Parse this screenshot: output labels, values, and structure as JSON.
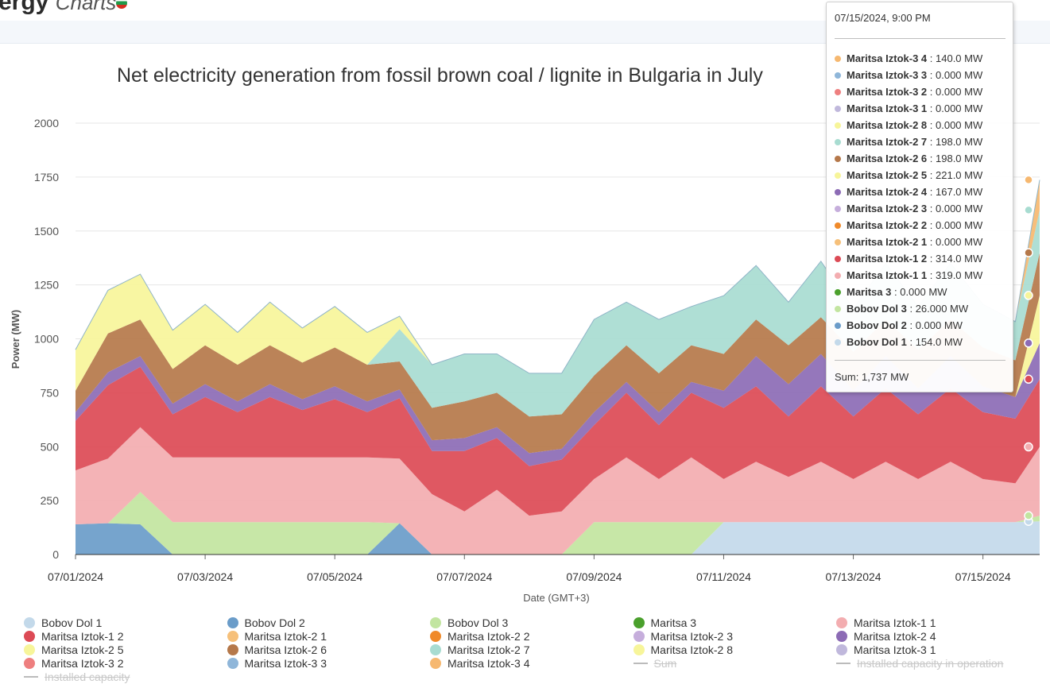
{
  "header": {
    "logo_text": "ergy",
    "logo_sub": "Charts"
  },
  "colors": {
    "Bobov Dol 1": "#c3d9ea",
    "Bobov Dol 2": "#6a9cc9",
    "Bobov Dol 3": "#c2e5a0",
    "Maritsa 3": "#4aa02c",
    "Maritsa Iztok-1 1": "#f3adb0",
    "Maritsa Iztok-1 2": "#dc4a55",
    "Maritsa Iztok-2 1": "#f6c07a",
    "Maritsa Iztok-2 2": "#f08a2a",
    "Maritsa Iztok-2 3": "#c6aedc",
    "Maritsa Iztok-2 4": "#8c6bb5",
    "Maritsa Iztok-2 5": "#f7f59a",
    "Maritsa Iztok-2 6": "#b5784a",
    "Maritsa Iztok-2 7": "#a8dcd1",
    "Maritsa Iztok-2 8": "#f7f59a",
    "Maritsa Iztok-3 1": "#c0b8dc",
    "Maritsa Iztok-3 2": "#ee7f7f",
    "Maritsa Iztok-3 3": "#8fb6d9",
    "Maritsa Iztok-3 4": "#f6b870",
    "Sum": "#bbbbbb",
    "Installed capacity in operation": "#bbbbbb",
    "Installed capacity": "#bbbbbb"
  },
  "chart_data": {
    "type": "area",
    "stacked": true,
    "title": "Net electricity generation from fossil brown coal / lignite in Bulgaria in July",
    "xlabel": "Date (GMT+3)",
    "ylabel": "Power (MW)",
    "ylim": [
      0,
      2000
    ],
    "yticks": [
      0,
      250,
      500,
      750,
      1000,
      1250,
      1500,
      1750,
      2000
    ],
    "xlim": [
      "07/01/2024",
      "07/15/2024 21:00"
    ],
    "xticks": [
      "07/01/2024",
      "07/03/2024",
      "07/05/2024",
      "07/07/2024",
      "07/09/2024",
      "07/11/2024",
      "07/13/2024",
      "07/15/2024"
    ],
    "grid": "horizontal",
    "legend_position": "bottom",
    "x_day": [
      0,
      0.5,
      1,
      1.5,
      2,
      2.5,
      3,
      3.5,
      4,
      4.5,
      5,
      5.5,
      6,
      6.5,
      7,
      7.5,
      8,
      8.5,
      9,
      9.5,
      10,
      10.5,
      11,
      11.5,
      12,
      12.5,
      13,
      13.5,
      14,
      14.5,
      14.875
    ],
    "series": [
      {
        "name": "Bobov Dol 1",
        "values": [
          0,
          0,
          0,
          0,
          0,
          0,
          0,
          0,
          0,
          0,
          0,
          0,
          0,
          0,
          0,
          0,
          0,
          0,
          0,
          0,
          150,
          150,
          150,
          150,
          150,
          150,
          150,
          150,
          150,
          150,
          154
        ]
      },
      {
        "name": "Bobov Dol 2",
        "values": [
          140,
          145,
          140,
          0,
          0,
          0,
          0,
          0,
          0,
          0,
          145,
          0,
          0,
          0,
          0,
          0,
          0,
          0,
          0,
          0,
          0,
          0,
          0,
          0,
          0,
          0,
          0,
          0,
          0,
          0,
          0
        ]
      },
      {
        "name": "Bobov Dol 3",
        "values": [
          0,
          0,
          150,
          150,
          150,
          150,
          150,
          150,
          150,
          150,
          0,
          0,
          0,
          0,
          0,
          0,
          150,
          150,
          150,
          150,
          0,
          0,
          0,
          0,
          0,
          0,
          0,
          0,
          0,
          0,
          26
        ]
      },
      {
        "name": "Maritsa 3",
        "values": [
          0,
          0,
          0,
          0,
          0,
          0,
          0,
          0,
          0,
          0,
          0,
          0,
          0,
          0,
          0,
          0,
          0,
          0,
          0,
          0,
          0,
          0,
          0,
          0,
          0,
          0,
          0,
          0,
          0,
          0,
          0
        ]
      },
      {
        "name": "Maritsa Iztok-1 1",
        "values": [
          250,
          300,
          300,
          300,
          300,
          300,
          300,
          300,
          300,
          300,
          300,
          280,
          200,
          300,
          180,
          200,
          200,
          300,
          200,
          300,
          200,
          280,
          210,
          280,
          200,
          280,
          200,
          280,
          200,
          180,
          319
        ]
      },
      {
        "name": "Maritsa Iztok-1 2",
        "values": [
          230,
          340,
          280,
          200,
          280,
          210,
          280,
          220,
          270,
          210,
          280,
          200,
          280,
          240,
          230,
          240,
          250,
          300,
          250,
          300,
          330,
          350,
          280,
          350,
          290,
          340,
          300,
          340,
          310,
          300,
          314
        ]
      },
      {
        "name": "Maritsa Iztok-2 1",
        "values": [
          0,
          0,
          0,
          0,
          0,
          0,
          0,
          0,
          0,
          0,
          0,
          0,
          0,
          0,
          0,
          0,
          0,
          0,
          0,
          0,
          0,
          0,
          0,
          0,
          0,
          0,
          0,
          0,
          0,
          0,
          0
        ]
      },
      {
        "name": "Maritsa Iztok-2 2",
        "values": [
          0,
          0,
          0,
          0,
          0,
          0,
          0,
          0,
          0,
          0,
          0,
          0,
          0,
          0,
          0,
          0,
          0,
          0,
          0,
          0,
          0,
          0,
          0,
          0,
          0,
          0,
          0,
          0,
          0,
          0,
          0
        ]
      },
      {
        "name": "Maritsa Iztok-2 3",
        "values": [
          0,
          0,
          0,
          0,
          0,
          0,
          0,
          0,
          0,
          0,
          0,
          0,
          0,
          0,
          0,
          0,
          0,
          0,
          0,
          0,
          0,
          0,
          0,
          0,
          0,
          0,
          0,
          0,
          0,
          0,
          0
        ]
      },
      {
        "name": "Maritsa Iztok-2 4",
        "values": [
          40,
          60,
          50,
          50,
          60,
          50,
          60,
          50,
          60,
          50,
          40,
          50,
          60,
          50,
          60,
          50,
          60,
          50,
          60,
          50,
          80,
          140,
          150,
          150,
          120,
          150,
          120,
          150,
          120,
          100,
          167
        ]
      },
      {
        "name": "Maritsa Iztok-2 5",
        "values": [
          0,
          0,
          0,
          0,
          0,
          0,
          0,
          0,
          0,
          0,
          0,
          0,
          0,
          0,
          0,
          0,
          0,
          0,
          0,
          0,
          0,
          0,
          0,
          0,
          0,
          0,
          0,
          0,
          0,
          0,
          221
        ]
      },
      {
        "name": "Maritsa Iztok-2 6",
        "values": [
          100,
          180,
          170,
          160,
          180,
          170,
          180,
          170,
          180,
          170,
          130,
          150,
          170,
          160,
          170,
          160,
          170,
          170,
          180,
          170,
          170,
          170,
          180,
          170,
          180,
          170,
          180,
          170,
          180,
          170,
          198
        ]
      },
      {
        "name": "Maritsa Iztok-2 7",
        "values": [
          0,
          0,
          0,
          0,
          0,
          0,
          0,
          0,
          0,
          0,
          150,
          200,
          220,
          180,
          200,
          190,
          260,
          200,
          250,
          180,
          270,
          250,
          200,
          260,
          200,
          260,
          200,
          260,
          200,
          180,
          198
        ]
      },
      {
        "name": "Maritsa Iztok-2 8",
        "values": [
          190,
          200,
          210,
          180,
          190,
          150,
          200,
          160,
          190,
          150,
          60,
          0,
          0,
          0,
          0,
          0,
          0,
          0,
          0,
          0,
          0,
          0,
          0,
          0,
          0,
          0,
          0,
          0,
          0,
          0,
          0
        ]
      },
      {
        "name": "Maritsa Iztok-3 1",
        "values": [
          0,
          0,
          0,
          0,
          0,
          0,
          0,
          0,
          0,
          0,
          0,
          0,
          0,
          0,
          0,
          0,
          0,
          0,
          0,
          0,
          0,
          0,
          0,
          0,
          0,
          0,
          0,
          0,
          0,
          0,
          0
        ]
      },
      {
        "name": "Maritsa Iztok-3 2",
        "values": [
          0,
          0,
          0,
          0,
          0,
          0,
          0,
          0,
          0,
          0,
          0,
          0,
          0,
          0,
          0,
          0,
          0,
          0,
          0,
          0,
          0,
          0,
          0,
          0,
          0,
          0,
          0,
          0,
          0,
          0,
          0
        ]
      },
      {
        "name": "Maritsa Iztok-3 3",
        "values": [
          0,
          0,
          0,
          0,
          0,
          0,
          0,
          0,
          0,
          0,
          0,
          0,
          0,
          0,
          0,
          0,
          0,
          0,
          0,
          0,
          0,
          0,
          0,
          0,
          0,
          0,
          0,
          0,
          0,
          0,
          0
        ]
      },
      {
        "name": "Maritsa Iztok-3 4",
        "values": [
          0,
          0,
          0,
          0,
          0,
          0,
          0,
          0,
          0,
          0,
          0,
          0,
          0,
          0,
          0,
          0,
          0,
          0,
          0,
          0,
          0,
          0,
          0,
          0,
          0,
          0,
          0,
          0,
          0,
          0,
          140
        ]
      }
    ],
    "legend": [
      "Bobov Dol 1",
      "Bobov Dol 2",
      "Bobov Dol 3",
      "Maritsa 3",
      "Maritsa Iztok-1 1",
      "Maritsa Iztok-1 2",
      "Maritsa Iztok-2 1",
      "Maritsa Iztok-2 2",
      "Maritsa Iztok-2 3",
      "Maritsa Iztok-2 4",
      "Maritsa Iztok-2 5",
      "Maritsa Iztok-2 6",
      "Maritsa Iztok-2 7",
      "Maritsa Iztok-2 8",
      "Maritsa Iztok-3 1",
      "Maritsa Iztok-3 2",
      "Maritsa Iztok-3 3",
      "Maritsa Iztok-3 4",
      "Sum",
      "Installed capacity in operation",
      "Installed capacity"
    ],
    "legend_hidden": [
      "Sum",
      "Installed capacity in operation",
      "Installed capacity"
    ]
  },
  "tooltip": {
    "header": "07/15/2024, 9:00 PM",
    "rows": [
      {
        "name": "Maritsa Iztok-3 4",
        "value": "140.0 MW"
      },
      {
        "name": "Maritsa Iztok-3 3",
        "value": "0.000 MW"
      },
      {
        "name": "Maritsa Iztok-3 2",
        "value": "0.000 MW"
      },
      {
        "name": "Maritsa Iztok-3 1",
        "value": "0.000 MW"
      },
      {
        "name": "Maritsa Iztok-2 8",
        "value": "0.000 MW"
      },
      {
        "name": "Maritsa Iztok-2 7",
        "value": "198.0 MW"
      },
      {
        "name": "Maritsa Iztok-2 6",
        "value": "198.0 MW"
      },
      {
        "name": "Maritsa Iztok-2 5",
        "value": "221.0 MW"
      },
      {
        "name": "Maritsa Iztok-2 4",
        "value": "167.0 MW"
      },
      {
        "name": "Maritsa Iztok-2 3",
        "value": "0.000 MW"
      },
      {
        "name": "Maritsa Iztok-2 2",
        "value": "0.000 MW"
      },
      {
        "name": "Maritsa Iztok-2 1",
        "value": "0.000 MW"
      },
      {
        "name": "Maritsa Iztok-1 2",
        "value": "314.0 MW"
      },
      {
        "name": "Maritsa Iztok-1 1",
        "value": "319.0 MW"
      },
      {
        "name": "Maritsa 3",
        "value": "0.000 MW"
      },
      {
        "name": "Bobov Dol 3",
        "value": "26.000 MW"
      },
      {
        "name": "Bobov Dol 2",
        "value": "0.000 MW"
      },
      {
        "name": "Bobov Dol 1",
        "value": "154.0 MW"
      }
    ],
    "sum_label": "Sum",
    "sum_value": "1,737 MW"
  }
}
